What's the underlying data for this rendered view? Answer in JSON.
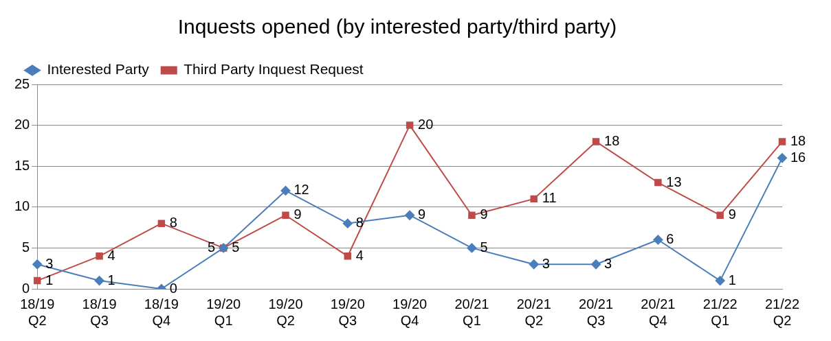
{
  "chart_data": {
    "type": "line",
    "title": "Inquests opened (by interested party/third party)",
    "categories": [
      "18/19 Q2",
      "18/19 Q3",
      "18/19 Q4",
      "19/20 Q1",
      "19/20 Q2",
      "19/20 Q3",
      "19/20 Q4",
      "20/21 Q1",
      "20/21 Q2",
      "20/21 Q3",
      "20/21 Q4",
      "21/22 Q1",
      "21/22 Q2"
    ],
    "series": [
      {
        "name": "Interested Party",
        "color": "#4a7ebb",
        "marker": "diamond",
        "values": [
          3,
          1,
          0,
          5,
          12,
          8,
          9,
          5,
          3,
          3,
          6,
          1,
          16
        ]
      },
      {
        "name": "Third Party Inquest Request",
        "color": "#be4b48",
        "marker": "square",
        "values": [
          1,
          4,
          8,
          5,
          9,
          4,
          20,
          9,
          11,
          18,
          13,
          9,
          18
        ]
      }
    ],
    "ylim": [
      0,
      25
    ],
    "yticks": [
      0,
      5,
      10,
      15,
      20,
      25
    ],
    "grid": "y",
    "legend": "top left",
    "data_labels": true,
    "line_style": "solid"
  }
}
